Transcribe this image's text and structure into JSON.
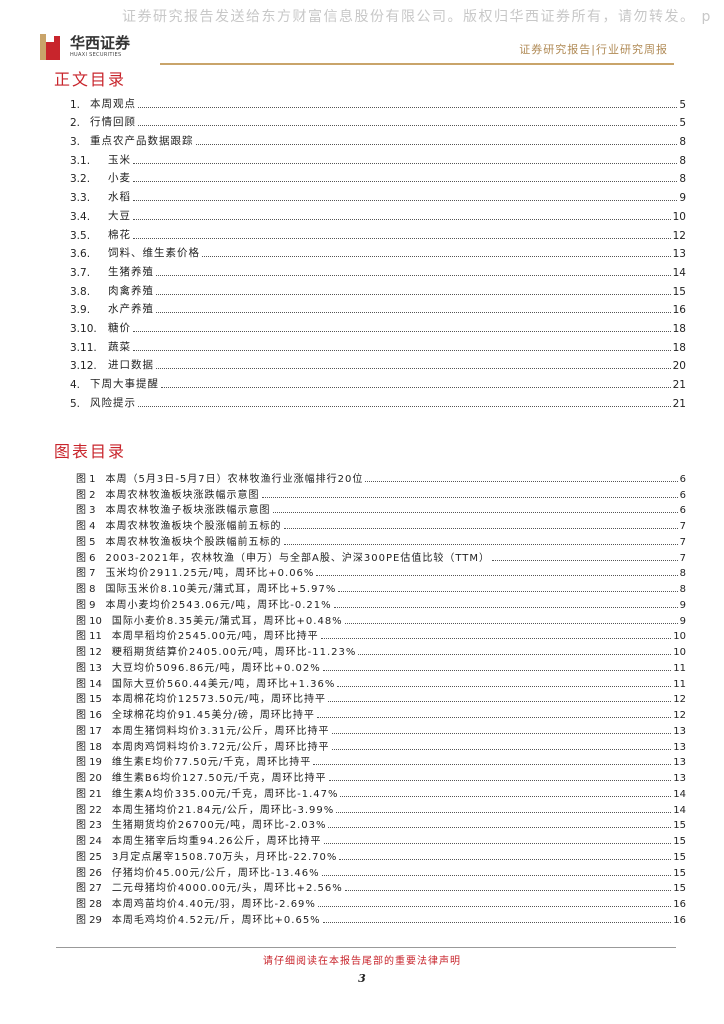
{
  "watermark": "证券研究报告发送给东方财富信息股份有限公司。版权归华西证券所有，请勿转发。 p",
  "logo": {
    "cn": "华西证券",
    "en": "HUAXI SECURITIES"
  },
  "header_right": "证券研究报告|行业研究周报",
  "colors": {
    "accent_red": "#c8252c",
    "gold": "#c9a46a"
  },
  "toc": {
    "title": "正文目录",
    "items": [
      {
        "num": "1.",
        "label": "本周观点",
        "page": "5",
        "sub": false
      },
      {
        "num": "2.",
        "label": "行情回顾",
        "page": "5",
        "sub": false
      },
      {
        "num": "3.",
        "label": "重点农产品数据跟踪",
        "page": "8",
        "sub": false
      },
      {
        "num": "3.1.",
        "label": "玉米",
        "page": "8",
        "sub": true
      },
      {
        "num": "3.2.",
        "label": "小麦",
        "page": "8",
        "sub": true
      },
      {
        "num": "3.3.",
        "label": "水稻",
        "page": "9",
        "sub": true
      },
      {
        "num": "3.4.",
        "label": "大豆",
        "page": "10",
        "sub": true
      },
      {
        "num": "3.5.",
        "label": "棉花",
        "page": "12",
        "sub": true
      },
      {
        "num": "3.6.",
        "label": "饲料、维生素价格",
        "page": "13",
        "sub": true
      },
      {
        "num": "3.7.",
        "label": "生猪养殖",
        "page": "14",
        "sub": true
      },
      {
        "num": "3.8.",
        "label": "肉禽养殖",
        "page": "15",
        "sub": true
      },
      {
        "num": "3.9.",
        "label": "水产养殖",
        "page": "16",
        "sub": true
      },
      {
        "num": "3.10.",
        "label": "糖价",
        "page": "18",
        "sub": true
      },
      {
        "num": "3.11.",
        "label": "蔬菜",
        "page": "18",
        "sub": true
      },
      {
        "num": "3.12.",
        "label": "进口数据",
        "page": "20",
        "sub": true
      },
      {
        "num": "4.",
        "label": "下周大事提醒",
        "page": "21",
        "sub": false
      },
      {
        "num": "5.",
        "label": "风险提示",
        "page": "21",
        "sub": false
      }
    ]
  },
  "figures": {
    "title": "图表目录",
    "items": [
      {
        "num": "图 1",
        "label": "本周（5月3日-5月7日）农林牧渔行业涨幅排行20位",
        "page": "6"
      },
      {
        "num": "图 2",
        "label": "本周农林牧渔板块涨跌幅示意图",
        "page": "6"
      },
      {
        "num": "图 3",
        "label": "本周农林牧渔子板块涨跌幅示意图",
        "page": "6"
      },
      {
        "num": "图 4",
        "label": "本周农林牧渔板块个股涨幅前五标的",
        "page": "7"
      },
      {
        "num": "图 5",
        "label": "本周农林牧渔板块个股跌幅前五标的",
        "page": "7"
      },
      {
        "num": "图 6",
        "label": "2003-2021年，农林牧渔（申万）与全部A股、沪深300PE估值比较（TTM）",
        "page": "7"
      },
      {
        "num": "图 7",
        "label": "玉米均价2911.25元/吨，周环比+0.06%",
        "page": "8"
      },
      {
        "num": "图 8",
        "label": "国际玉米价8.10美元/蒲式耳，周环比+5.97%",
        "page": "8"
      },
      {
        "num": "图 9",
        "label": "本周小麦均价2543.06元/吨，周环比-0.21%",
        "page": "9"
      },
      {
        "num": "图 10",
        "label": "国际小麦价8.35美元/蒲式耳，周环比+0.48%",
        "page": "9"
      },
      {
        "num": "图 11",
        "label": "本周早稻均价2545.00元/吨，周环比持平",
        "page": "10"
      },
      {
        "num": "图 12",
        "label": "粳稻期货结算价2405.00元/吨，周环比-11.23%",
        "page": "10"
      },
      {
        "num": "图 13",
        "label": "大豆均价5096.86元/吨，周环比+0.02%",
        "page": "11"
      },
      {
        "num": "图 14",
        "label": "国际大豆价560.44美元/吨，周环比+1.36%",
        "page": "11"
      },
      {
        "num": "图 15",
        "label": "本周棉花均价12573.50元/吨，周环比持平",
        "page": "12"
      },
      {
        "num": "图 16",
        "label": "全球棉花均价91.45美分/磅，周环比持平",
        "page": "12"
      },
      {
        "num": "图 17",
        "label": "本周生猪饲料均价3.31元/公斤，周环比持平",
        "page": "13"
      },
      {
        "num": "图 18",
        "label": "本周肉鸡饲料均价3.72元/公斤，周环比持平",
        "page": "13"
      },
      {
        "num": "图 19",
        "label": "维生素E均价77.50元/千克，周环比持平",
        "page": "13"
      },
      {
        "num": "图 20",
        "label": "维生素B6均价127.50元/千克，周环比持平",
        "page": "13"
      },
      {
        "num": "图 21",
        "label": "维生素A均价335.00元/千克，周环比-1.47%",
        "page": "14"
      },
      {
        "num": "图 22",
        "label": "本周生猪均价21.84元/公斤，周环比-3.99%",
        "page": "14"
      },
      {
        "num": "图 23",
        "label": "生猪期货均价26700元/吨，周环比-2.03%",
        "page": "15"
      },
      {
        "num": "图 24",
        "label": "本周生猪宰后均重94.26公斤，周环比持平",
        "page": "15"
      },
      {
        "num": "图 25",
        "label": "3月定点屠宰1508.70万头，月环比-22.70%",
        "page": "15"
      },
      {
        "num": "图 26",
        "label": "仔猪均价45.00元/公斤，周环比-13.46%",
        "page": "15"
      },
      {
        "num": "图 27",
        "label": "二元母猪均价4000.00元/头，周环比+2.56%",
        "page": "15"
      },
      {
        "num": "图 28",
        "label": "本周鸡苗均价4.40元/羽，周环比-2.69%",
        "page": "16"
      },
      {
        "num": "图 29",
        "label": "本周毛鸡均价4.52元/斤，周环比+0.65%",
        "page": "16"
      }
    ]
  },
  "footer": {
    "notice": "请仔细阅读在本报告尾部的重要法律声明",
    "page_number": "3"
  }
}
